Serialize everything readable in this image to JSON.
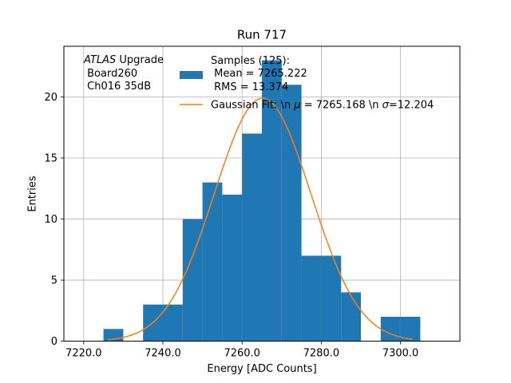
{
  "chart_data": {
    "type": "histogram",
    "title": "Run 717",
    "xlabel": "Energy [ADC Counts]",
    "ylabel": "Entries",
    "xlim": [
      7215,
      7315
    ],
    "ylim": [
      0,
      24.15
    ],
    "xticks": [
      7220.0,
      7240.0,
      7260.0,
      7280.0,
      7300.0
    ],
    "xtick_labels": [
      "7220.0",
      "7240.0",
      "7260.0",
      "7280.0",
      "7300.0"
    ],
    "yticks": [
      0,
      5,
      10,
      15,
      20
    ],
    "ytick_labels": [
      "0",
      "5",
      "10",
      "15",
      "20"
    ],
    "grid": true,
    "bars": [
      {
        "x0": 7225,
        "x1": 7230,
        "value": 1
      },
      {
        "x0": 7230,
        "x1": 7235,
        "value": 0
      },
      {
        "x0": 7235,
        "x1": 7240,
        "value": 3
      },
      {
        "x0": 7240,
        "x1": 7245,
        "value": 3
      },
      {
        "x0": 7245,
        "x1": 7250,
        "value": 10
      },
      {
        "x0": 7250,
        "x1": 7255,
        "value": 13
      },
      {
        "x0": 7255,
        "x1": 7260,
        "value": 12
      },
      {
        "x0": 7260,
        "x1": 7265,
        "value": 17
      },
      {
        "x0": 7265,
        "x1": 7270,
        "value": 23
      },
      {
        "x0": 7270,
        "x1": 7275,
        "value": 21
      },
      {
        "x0": 7275,
        "x1": 7280,
        "value": 7
      },
      {
        "x0": 7280,
        "x1": 7285,
        "value": 7
      },
      {
        "x0": 7285,
        "x1": 7290,
        "value": 4
      },
      {
        "x0": 7290,
        "x1": 7295,
        "value": 0
      },
      {
        "x0": 7295,
        "x1": 7300,
        "value": 2
      },
      {
        "x0": 7300,
        "x1": 7305,
        "value": 2
      }
    ],
    "bar_color": "#1f77b4",
    "fit": {
      "mu": 7265.168,
      "sigma": 12.204,
      "amplitude": 19.9,
      "x_range": [
        7226,
        7303
      ],
      "color": "#ff7f0e"
    },
    "annotation_lines": [
      {
        "italic": "ATLAS",
        "rest": " Upgrade"
      },
      {
        "italic": "",
        "rest": " Board260"
      },
      {
        "italic": "",
        "rest": " Ch016 35dB"
      }
    ],
    "legend": {
      "placement": "top-center",
      "samples_lines": [
        "Samples (125):",
        " Mean = 7265.222",
        " RMS = 13.374"
      ],
      "fit_label_pre": "Gaussian Fit: \\n ",
      "fit_label_mu": "μ",
      "fit_label_mid": " = 7265.168 \\n ",
      "fit_label_sigma": "σ",
      "fit_label_post": "=12.204"
    }
  }
}
